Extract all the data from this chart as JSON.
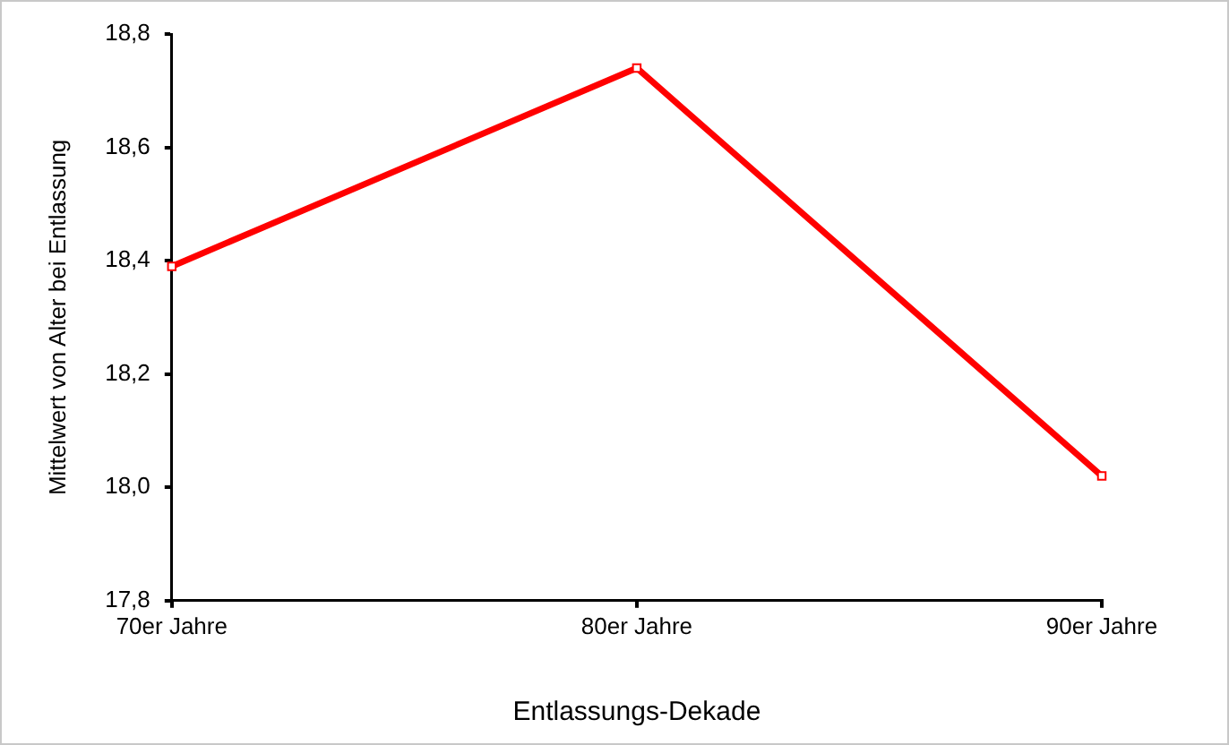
{
  "chart_data": {
    "type": "line",
    "xlabel": "Entlassungs-Dekade",
    "ylabel": "Mittelwert von Alter bei Entlassung",
    "categories": [
      "70er Jahre",
      "80er Jahre",
      "90er Jahre"
    ],
    "series": [
      {
        "color": "#ff0000",
        "values": [
          18.39,
          18.74,
          18.02
        ]
      }
    ],
    "ylim": [
      17.8,
      18.8
    ],
    "yticks": [
      {
        "value": 17.8,
        "label": "17,8"
      },
      {
        "value": 18.0,
        "label": "18,0"
      },
      {
        "value": 18.2,
        "label": "18,2"
      },
      {
        "value": 18.4,
        "label": "18,4"
      },
      {
        "value": 18.6,
        "label": "18,6"
      },
      {
        "value": 18.8,
        "label": "18,8"
      }
    ],
    "grid": false,
    "legend": false,
    "marker": "square",
    "line_style": "solid"
  }
}
